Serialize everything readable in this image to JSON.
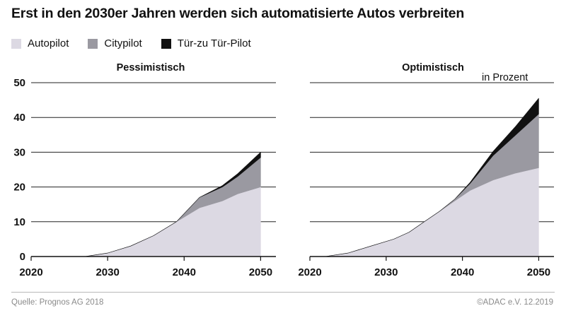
{
  "title": "Erst in den 2030er Jahren werden sich automatisierte Autos verbreiten",
  "source": "Quelle: Prognos AG 2018",
  "credit": "©ADAC e.V.  12.2019",
  "unit_note": "in Prozent",
  "legend": [
    {
      "label": "Autopilot",
      "color": "#dcd9e3"
    },
    {
      "label": "Citypilot",
      "color": "#9a99a1"
    },
    {
      "label": "Tür-zu Tür-Pilot",
      "color": "#111111"
    }
  ],
  "chart_data": [
    {
      "type": "area",
      "stacked": true,
      "title": "Pessimistisch",
      "x": [
        2027,
        2030,
        2033,
        2036,
        2039,
        2042,
        2045,
        2047,
        2050
      ],
      "series": [
        {
          "name": "Autopilot",
          "values": [
            0,
            1,
            3,
            6,
            10,
            14,
            16,
            18,
            20
          ]
        },
        {
          "name": "Citypilot",
          "values": [
            0,
            0,
            0,
            0,
            0,
            3,
            4,
            5,
            8.5
          ]
        },
        {
          "name": "Tür-zu Tür-Pilot",
          "values": [
            0,
            0,
            0,
            0,
            0,
            0,
            0.4,
            0.8,
            1.5
          ]
        }
      ],
      "xlim": [
        2020,
        2052
      ],
      "ylim": [
        0,
        50
      ],
      "xticks": [
        "2020",
        "2030",
        "2040",
        "2050"
      ],
      "yticks": [
        "0",
        "10",
        "20",
        "30",
        "40",
        "50"
      ],
      "grid": true
    },
    {
      "type": "area",
      "stacked": true,
      "title": "Optimistisch",
      "x": [
        2022,
        2025,
        2028,
        2031,
        2033,
        2035,
        2037,
        2039,
        2041,
        2044,
        2047,
        2050
      ],
      "series": [
        {
          "name": "Autopilot",
          "values": [
            0,
            1,
            3,
            5,
            7,
            10,
            13,
            16,
            19,
            22,
            24,
            25.5
          ]
        },
        {
          "name": "Citypilot",
          "values": [
            0,
            0,
            0,
            0,
            0,
            0,
            0,
            0.5,
            2,
            7,
            11,
            15.5
          ]
        },
        {
          "name": "Tür-zu Tür-Pilot",
          "values": [
            0,
            0,
            0,
            0,
            0,
            0,
            0,
            0,
            0.3,
            1.2,
            2.5,
            4.5
          ]
        }
      ],
      "xlim": [
        2020,
        2052
      ],
      "ylim": [
        0,
        50
      ],
      "xticks": [
        "2020",
        "2030",
        "2040",
        "2050"
      ],
      "yticks": [],
      "grid": true
    }
  ]
}
